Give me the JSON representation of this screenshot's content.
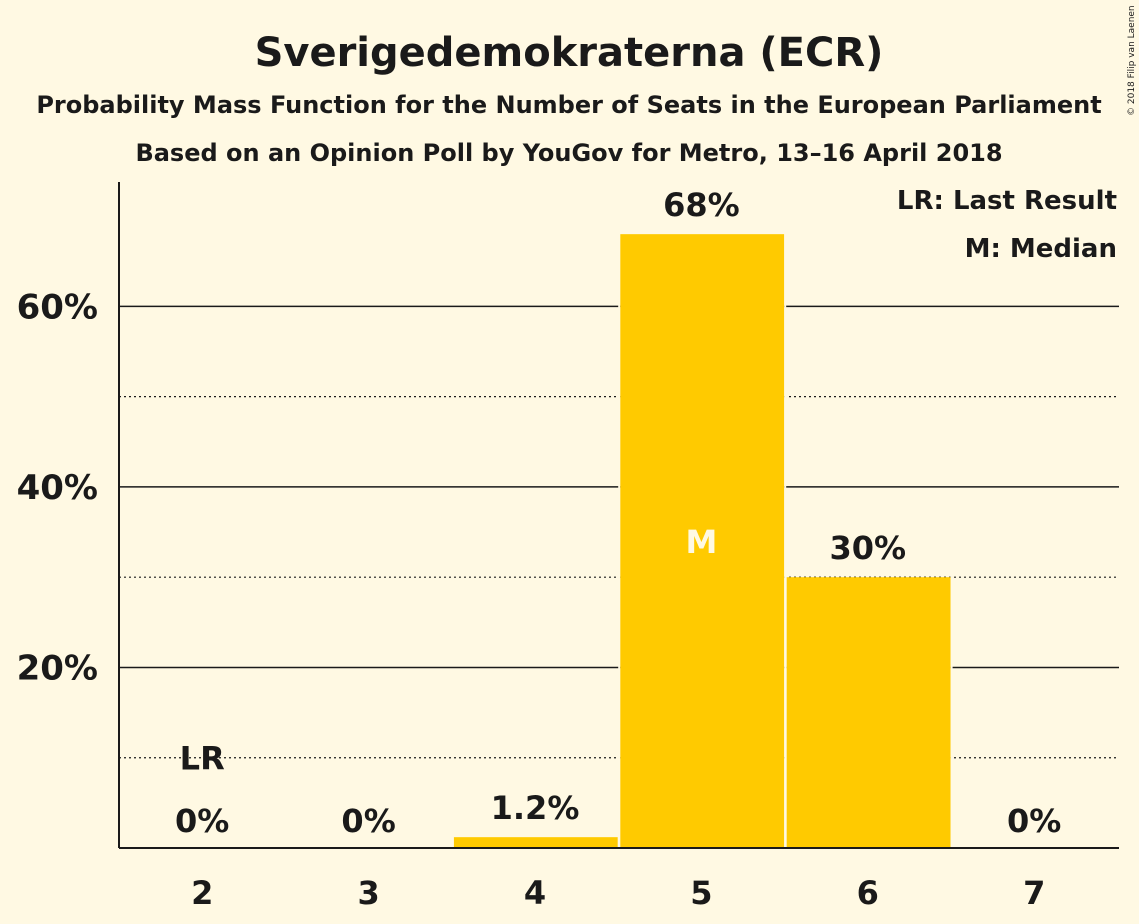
{
  "chart_data": {
    "type": "bar",
    "title": "Sverigedemokraterna (ECR)",
    "subtitle": "Probability Mass Function for the Number of Seats in the European Parliament",
    "subtitle2": "Based on an Opinion Poll by YouGov for Metro, 13–16 April 2018",
    "categories": [
      "2",
      "3",
      "4",
      "5",
      "6",
      "7"
    ],
    "values": [
      0,
      0,
      1.2,
      68,
      30,
      0
    ],
    "value_labels": [
      "0%",
      "0%",
      "1.2%",
      "68%",
      "30%",
      "0%"
    ],
    "ylim": [
      0,
      74
    ],
    "yticks_major": [
      20,
      40,
      60
    ],
    "ytick_labels": [
      "20%",
      "40%",
      "60%"
    ],
    "yticks_minor": [
      10,
      30,
      50
    ],
    "grid": true,
    "bar_color": "#FFCA00",
    "last_result": {
      "category": "2",
      "label": "LR"
    },
    "median": {
      "category": "5",
      "label": "M"
    },
    "legend": {
      "position": "top-right",
      "entries": [
        "LR: Last Result",
        "M: Median"
      ]
    },
    "copyright": "© 2018 Filip van Laenen"
  },
  "colors": {
    "background": "#FFF9E3",
    "bar": "#FFCA00",
    "text": "#1a1a1a"
  }
}
